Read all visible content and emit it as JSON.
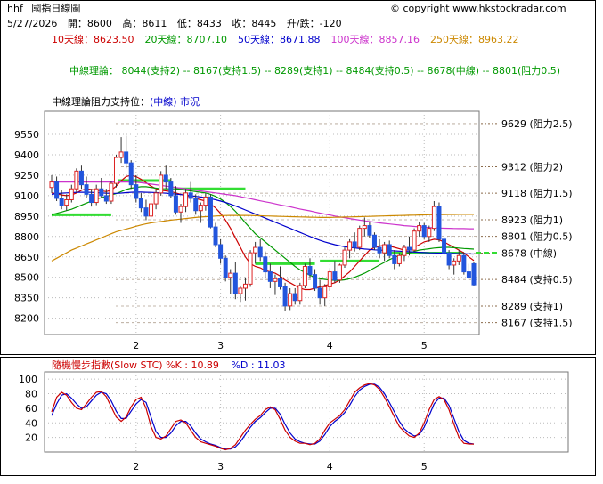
{
  "header": {
    "code": "hhf",
    "title": "國指日線圖",
    "copyright": "© copyright www.hkstockradar.com",
    "date": "5/27/2026",
    "open_label": "開：",
    "open": "8600",
    "high_label": "高：",
    "high": "8611",
    "low_label": "低：",
    "low": "8433",
    "close_label": "收：",
    "close": "8445",
    "change_label": "升/跌：",
    "change": "-120"
  },
  "moving_averages": [
    {
      "label": "10天線：",
      "value": "8623.50",
      "color": "#cc0000"
    },
    {
      "label": "20天線：",
      "value": "8707.10",
      "color": "#009900"
    },
    {
      "label": "50天線：",
      "value": "8671.88",
      "color": "#0000cc"
    },
    {
      "label": "100天線：",
      "value": "8857.16",
      "color": "#cc33cc"
    },
    {
      "label": "250天線：",
      "value": "8963.22",
      "color": "#cc8800"
    }
  ],
  "theory_line": "中線理論： 8044(支持2) -- 8167(支持1.5) -- 8289(支持1) -- 8484(支持0.5) -- 8678(中線) -- 8801(阻力0.5)",
  "panel_title_main": "中線理論阻力支持位：",
  "panel_title_sub": "(中線) 市況",
  "levels": [
    {
      "value": 9629,
      "label": "9629 (阻力2.5)"
    },
    {
      "value": 9312,
      "label": "9312 (阻力2)"
    },
    {
      "value": 9118,
      "label": "9118 (阻力1.5)"
    },
    {
      "value": 8923,
      "label": "8923 (阻力1)"
    },
    {
      "value": 8801,
      "label": "8801 (阻力0.5)"
    },
    {
      "value": 8678,
      "label": "8678 (中線)"
    },
    {
      "value": 8484,
      "label": "8484 (支持0.5)"
    },
    {
      "value": 8289,
      "label": "8289 (支持1)"
    },
    {
      "value": 8167,
      "label": "8167 (支持1.5)"
    }
  ],
  "stc_title": "隨機慢步指數(Slow STC) %K : 10.89",
  "stc_d": "%D : 11.03",
  "chart_data": {
    "type": "candlestick",
    "price_axis": {
      "ticks": [
        9550,
        9400,
        9250,
        9100,
        8950,
        8800,
        8650,
        8500,
        8350,
        8200
      ],
      "ylim": [
        8080,
        9720
      ]
    },
    "x_ticks": [
      {
        "label": "2",
        "i": 17
      },
      {
        "label": "3",
        "i": 34
      },
      {
        "label": "4",
        "i": 56
      },
      {
        "label": "5",
        "i": 75
      }
    ],
    "grid": true,
    "candles": [
      [
        9160,
        9250,
        9120,
        9200
      ],
      [
        9200,
        9240,
        9060,
        9080
      ],
      [
        9080,
        9140,
        9000,
        9030
      ],
      [
        9030,
        9110,
        8990,
        9070
      ],
      [
        9070,
        9180,
        9050,
        9150
      ],
      [
        9150,
        9300,
        9120,
        9280
      ],
      [
        9280,
        9320,
        9150,
        9180
      ],
      [
        9180,
        9240,
        9080,
        9110
      ],
      [
        9110,
        9150,
        9020,
        9050
      ],
      [
        9050,
        9180,
        9030,
        9150
      ],
      [
        9150,
        9230,
        9080,
        9100
      ],
      [
        9100,
        9150,
        9040,
        9060
      ],
      [
        9060,
        9210,
        9040,
        9190
      ],
      [
        9190,
        9400,
        9160,
        9380
      ],
      [
        9380,
        9530,
        9340,
        9420
      ],
      [
        9420,
        9540,
        9300,
        9340
      ],
      [
        9340,
        9360,
        9150,
        9180
      ],
      [
        9180,
        9250,
        9050,
        9080
      ],
      [
        9080,
        9120,
        8980,
        9010
      ],
      [
        9010,
        9070,
        8920,
        8950
      ],
      [
        8950,
        9060,
        8920,
        9040
      ],
      [
        9040,
        9140,
        9000,
        9120
      ],
      [
        9120,
        9280,
        9100,
        9250
      ],
      [
        9250,
        9320,
        9150,
        9200
      ],
      [
        9200,
        9230,
        9080,
        9100
      ],
      [
        9100,
        9170,
        8960,
        8980
      ],
      [
        8980,
        9040,
        8900,
        9020
      ],
      [
        9020,
        9150,
        8980,
        9120
      ],
      [
        9120,
        9200,
        9050,
        9080
      ],
      [
        9080,
        9110,
        8960,
        8990
      ],
      [
        8990,
        9050,
        8900,
        9030
      ],
      [
        9030,
        9120,
        8990,
        9090
      ],
      [
        9090,
        9110,
        8860,
        8870
      ],
      [
        8870,
        8900,
        8720,
        8740
      ],
      [
        8740,
        8780,
        8600,
        8640
      ],
      [
        8640,
        8660,
        8470,
        8500
      ],
      [
        8500,
        8560,
        8380,
        8530
      ],
      [
        8530,
        8610,
        8340,
        8380
      ],
      [
        8380,
        8440,
        8320,
        8420
      ],
      [
        8420,
        8500,
        8330,
        8450
      ],
      [
        8450,
        8700,
        8430,
        8680
      ],
      [
        8680,
        8760,
        8600,
        8720
      ],
      [
        8720,
        8780,
        8620,
        8650
      ],
      [
        8650,
        8690,
        8500,
        8540
      ],
      [
        8540,
        8600,
        8420,
        8470
      ],
      [
        8470,
        8520,
        8370,
        8490
      ],
      [
        8490,
        8580,
        8410,
        8430
      ],
      [
        8430,
        8460,
        8250,
        8290
      ],
      [
        8290,
        8420,
        8260,
        8380
      ],
      [
        8380,
        8420,
        8300,
        8330
      ],
      [
        8330,
        8460,
        8300,
        8440
      ],
      [
        8440,
        8600,
        8420,
        8580
      ],
      [
        8580,
        8640,
        8490,
        8520
      ],
      [
        8520,
        8560,
        8400,
        8420
      ],
      [
        8420,
        8480,
        8300,
        8350
      ],
      [
        8350,
        8450,
        8290,
        8430
      ],
      [
        8430,
        8560,
        8400,
        8540
      ],
      [
        8540,
        8620,
        8460,
        8480
      ],
      [
        8480,
        8600,
        8460,
        8590
      ],
      [
        8590,
        8720,
        8570,
        8700
      ],
      [
        8700,
        8780,
        8640,
        8760
      ],
      [
        8760,
        8830,
        8690,
        8720
      ],
      [
        8720,
        8880,
        8700,
        8860
      ],
      [
        8860,
        8940,
        8800,
        8880
      ],
      [
        8880,
        8910,
        8790,
        8810
      ],
      [
        8810,
        8830,
        8700,
        8720
      ],
      [
        8720,
        8780,
        8640,
        8680
      ],
      [
        8680,
        8760,
        8620,
        8740
      ],
      [
        8740,
        8770,
        8640,
        8660
      ],
      [
        8660,
        8700,
        8560,
        8600
      ],
      [
        8600,
        8680,
        8580,
        8660
      ],
      [
        8660,
        8740,
        8620,
        8720
      ],
      [
        8720,
        8800,
        8660,
        8700
      ],
      [
        8700,
        8860,
        8690,
        8840
      ],
      [
        8840,
        8910,
        8800,
        8880
      ],
      [
        8880,
        8900,
        8780,
        8800
      ],
      [
        8800,
        8880,
        8760,
        8860
      ],
      [
        8860,
        9060,
        8840,
        9020
      ],
      [
        9020,
        9050,
        8760,
        8780
      ],
      [
        8780,
        8800,
        8660,
        8680
      ],
      [
        8680,
        8700,
        8560,
        8590
      ],
      [
        8590,
        8640,
        8520,
        8620
      ],
      [
        8620,
        8700,
        8590,
        8660
      ],
      [
        8660,
        8680,
        8520,
        8540
      ],
      [
        8540,
        8600,
        8480,
        8500
      ],
      [
        8600,
        8611,
        8433,
        8445
      ]
    ],
    "series": [
      {
        "name": "10天線",
        "color": "#cc0000",
        "values": [
          9120,
          9115,
          9105,
          9100,
          9105,
          9120,
          9140,
          9150,
          9145,
          9140,
          9135,
          9130,
          9140,
          9170,
          9210,
          9240,
          9250,
          9240,
          9220,
          9195,
          9170,
          9150,
          9140,
          9135,
          9130,
          9120,
          9110,
          9100,
          9090,
          9080,
          9070,
          9060,
          9040,
          9010,
          8970,
          8920,
          8860,
          8790,
          8720,
          8650,
          8600,
          8580,
          8570,
          8550,
          8540,
          8530,
          8510,
          8480,
          8460,
          8440,
          8420,
          8410,
          8410,
          8420,
          8430,
          8440,
          8450,
          8460,
          8480,
          8510,
          8540,
          8580,
          8620,
          8660,
          8700,
          8720,
          8730,
          8735,
          8730,
          8720,
          8710,
          8700,
          8700,
          8720,
          8740,
          8760,
          8770,
          8780,
          8775,
          8760,
          8740,
          8720,
          8700,
          8680,
          8650,
          8623
        ]
      },
      {
        "name": "20天線",
        "color": "#009900",
        "values": [
          8960,
          8970,
          8980,
          8990,
          9000,
          9015,
          9030,
          9045,
          9060,
          9075,
          9085,
          9095,
          9105,
          9115,
          9130,
          9145,
          9155,
          9160,
          9165,
          9165,
          9160,
          9155,
          9150,
          9150,
          9150,
          9150,
          9145,
          9140,
          9135,
          9130,
          9125,
          9120,
          9110,
          9095,
          9075,
          9050,
          9020,
          8985,
          8945,
          8900,
          8860,
          8820,
          8790,
          8760,
          8730,
          8700,
          8670,
          8640,
          8610,
          8580,
          8555,
          8535,
          8515,
          8500,
          8490,
          8485,
          8480,
          8478,
          8478,
          8482,
          8490,
          8500,
          8515,
          8530,
          8550,
          8570,
          8590,
          8610,
          8630,
          8645,
          8660,
          8670,
          8680,
          8690,
          8700,
          8705,
          8710,
          8715,
          8718,
          8720,
          8720,
          8718,
          8715,
          8712,
          8710,
          8707
        ]
      },
      {
        "name": "50天線",
        "color": "#0000cc",
        "values": [
          9110,
          9115,
          9118,
          9120,
          9122,
          9124,
          9125,
          9125,
          9124,
          9122,
          9120,
          9118,
          9117,
          9117,
          9119,
          9122,
          9125,
          9126,
          9126,
          9125,
          9124,
          9122,
          9120,
          9118,
          9115,
          9112,
          9108,
          9104,
          9100,
          9095,
          9090,
          9085,
          9078,
          9070,
          9060,
          9050,
          9038,
          9025,
          9010,
          8995,
          8980,
          8965,
          8950,
          8935,
          8920,
          8905,
          8890,
          8875,
          8860,
          8845,
          8830,
          8815,
          8800,
          8785,
          8772,
          8760,
          8750,
          8740,
          8732,
          8725,
          8720,
          8716,
          8712,
          8708,
          8705,
          8702,
          8700,
          8698,
          8696,
          8694,
          8692,
          8690,
          8688,
          8686,
          8684,
          8682,
          8680,
          8679,
          8678,
          8677,
          8676,
          8675,
          8674,
          8673,
          8672,
          8671
        ]
      },
      {
        "name": "100天線",
        "color": "#cc33cc",
        "values": [
          9200,
          9200,
          9200,
          9200,
          9200,
          9200,
          9200,
          9200,
          9200,
          9200,
          9200,
          9200,
          9200,
          9200,
          9200,
          9200,
          9200,
          9198,
          9195,
          9190,
          9185,
          9180,
          9175,
          9170,
          9165,
          9160,
          9155,
          9150,
          9145,
          9140,
          9135,
          9130,
          9125,
          9120,
          9115,
          9110,
          9105,
          9100,
          9092,
          9085,
          9078,
          9070,
          9062,
          9055,
          9048,
          9040,
          9032,
          9025,
          9018,
          9010,
          9002,
          8995,
          8988,
          8980,
          8972,
          8965,
          8958,
          8950,
          8944,
          8938,
          8932,
          8926,
          8920,
          8915,
          8910,
          8905,
          8900,
          8896,
          8892,
          8888,
          8884,
          8880,
          8877,
          8874,
          8871,
          8868,
          8866,
          8864,
          8862,
          8861,
          8860,
          8859,
          8858,
          8858,
          8857,
          8857
        ]
      },
      {
        "name": "250天線",
        "color": "#cc8800",
        "values": [
          8620,
          8640,
          8660,
          8680,
          8700,
          8715,
          8730,
          8745,
          8760,
          8775,
          8790,
          8805,
          8820,
          8835,
          8845,
          8855,
          8865,
          8875,
          8885,
          8893,
          8900,
          8905,
          8910,
          8915,
          8920,
          8924,
          8928,
          8932,
          8936,
          8940,
          8943,
          8946,
          8948,
          8950,
          8952,
          8954,
          8955,
          8955,
          8955,
          8955,
          8954,
          8953,
          8952,
          8951,
          8950,
          8949,
          8948,
          8947,
          8946,
          8945,
          8944,
          8943,
          8942,
          8941,
          8940,
          8940,
          8940,
          8941,
          8942,
          8943,
          8944,
          8945,
          8946,
          8947,
          8948,
          8949,
          8950,
          8951,
          8952,
          8953,
          8954,
          8955,
          8956,
          8957,
          8958,
          8959,
          8960,
          8960,
          8961,
          8961,
          8962,
          8962,
          8963,
          8963,
          8963,
          8963
        ]
      }
    ],
    "theory_segments": [
      {
        "from": 0,
        "to": 12,
        "value": 8960
      },
      {
        "from": 13,
        "to": 24,
        "value": 9210
      },
      {
        "from": 25,
        "to": 39,
        "value": 9150
      },
      {
        "from": 41,
        "to": 53,
        "value": 8600
      },
      {
        "from": 54,
        "to": 66,
        "value": 8620
      },
      {
        "from": 67,
        "to": 83,
        "value": 8678
      }
    ],
    "stc": {
      "ylim": [
        0,
        110
      ],
      "ticks": [
        100,
        80,
        60,
        40,
        20
      ],
      "k": [
        55,
        75,
        82,
        78,
        68,
        60,
        58,
        66,
        75,
        82,
        83,
        76,
        62,
        48,
        42,
        48,
        62,
        72,
        75,
        60,
        35,
        20,
        18,
        22,
        32,
        42,
        44,
        40,
        30,
        20,
        14,
        12,
        10,
        8,
        5,
        3,
        5,
        10,
        20,
        30,
        38,
        45,
        50,
        58,
        62,
        58,
        45,
        30,
        20,
        15,
        12,
        12,
        10,
        12,
        18,
        30,
        40,
        45,
        50,
        58,
        70,
        82,
        88,
        92,
        94,
        92,
        86,
        75,
        62,
        48,
        35,
        28,
        22,
        20,
        26,
        40,
        58,
        72,
        76,
        72,
        58,
        38,
        20,
        12,
        11,
        10.89
      ],
      "d": [
        50,
        66,
        78,
        80,
        74,
        66,
        60,
        62,
        70,
        78,
        82,
        80,
        70,
        56,
        46,
        46,
        56,
        66,
        72,
        68,
        48,
        28,
        20,
        20,
        26,
        36,
        42,
        42,
        36,
        26,
        18,
        14,
        11,
        9,
        6,
        4,
        4,
        7,
        14,
        24,
        34,
        42,
        47,
        54,
        60,
        60,
        52,
        38,
        26,
        18,
        14,
        12,
        11,
        11,
        15,
        24,
        35,
        42,
        47,
        54,
        64,
        76,
        85,
        90,
        93,
        93,
        89,
        80,
        68,
        55,
        42,
        32,
        26,
        22,
        24,
        34,
        50,
        66,
        74,
        74,
        64,
        46,
        28,
        16,
        12,
        11.03
      ]
    }
  }
}
